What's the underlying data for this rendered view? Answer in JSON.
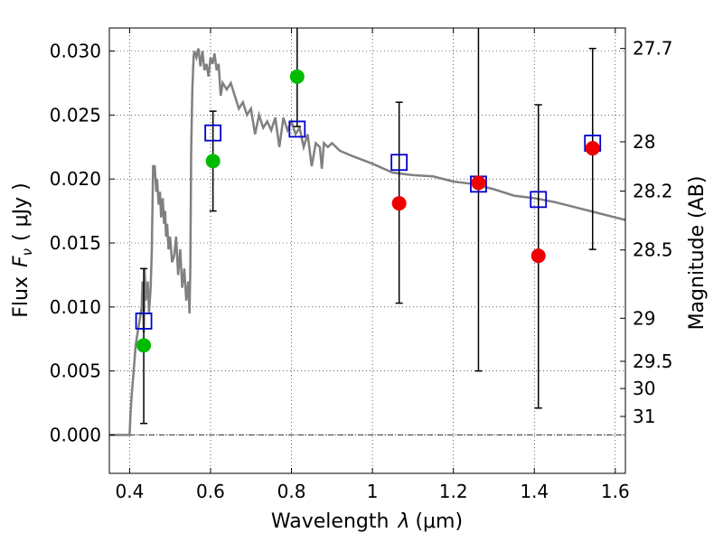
{
  "chart_data": {
    "type": "scatter",
    "xlabel": "Wavelength",
    "xlabel_symbol": "λ",
    "xlabel_unit": "(μm)",
    "ylabel": "Flux",
    "ylabel_symbol": "F",
    "ylabel_sub": "ν",
    "ylabel_unit": "( μJy )",
    "y2label": "Magnitude (AB)",
    "xlim": [
      0.35,
      1.625
    ],
    "ylim": [
      -0.003,
      0.0318
    ],
    "grid": true,
    "xticks": [
      {
        "value": 0.4,
        "label": "0.4"
      },
      {
        "value": 0.6,
        "label": "0.6"
      },
      {
        "value": 0.8,
        "label": "0.8"
      },
      {
        "value": 1.0,
        "label": "1"
      },
      {
        "value": 1.2,
        "label": "1.2"
      },
      {
        "value": 1.4,
        "label": "1.4"
      },
      {
        "value": 1.6,
        "label": "1.6"
      }
    ],
    "yticks": [
      {
        "value": 0.0,
        "label": "0.000"
      },
      {
        "value": 0.005,
        "label": "0.005"
      },
      {
        "value": 0.01,
        "label": "0.010"
      },
      {
        "value": 0.015,
        "label": "0.015"
      },
      {
        "value": 0.02,
        "label": "0.020"
      },
      {
        "value": 0.025,
        "label": "0.025"
      },
      {
        "value": 0.03,
        "label": "0.030"
      }
    ],
    "mag_ticks": [
      {
        "mag": 27.7,
        "label": "27.7"
      },
      {
        "mag": 28.0,
        "label": "28"
      },
      {
        "mag": 28.2,
        "label": "28.2"
      },
      {
        "mag": 28.5,
        "label": "28.5"
      },
      {
        "mag": 29.0,
        "label": "29"
      },
      {
        "mag": 29.5,
        "label": "29.5"
      },
      {
        "mag": 30.0,
        "label": "30"
      },
      {
        "mag": 31.0,
        "label": "31"
      }
    ],
    "model_sed": {
      "color": "#808080",
      "x": [
        0.35,
        0.4,
        0.402,
        0.405,
        0.41,
        0.415,
        0.42,
        0.425,
        0.43,
        0.432,
        0.435,
        0.437,
        0.44,
        0.445,
        0.448,
        0.452,
        0.455,
        0.458,
        0.462,
        0.466,
        0.468,
        0.472,
        0.475,
        0.478,
        0.482,
        0.485,
        0.488,
        0.49,
        0.493,
        0.496,
        0.5,
        0.505,
        0.51,
        0.515,
        0.52,
        0.525,
        0.53,
        0.535,
        0.54,
        0.545,
        0.548,
        0.55,
        0.552,
        0.555,
        0.558,
        0.56,
        0.565,
        0.57,
        0.575,
        0.58,
        0.585,
        0.59,
        0.595,
        0.6,
        0.605,
        0.61,
        0.615,
        0.62,
        0.625,
        0.63,
        0.64,
        0.65,
        0.66,
        0.67,
        0.68,
        0.69,
        0.7,
        0.71,
        0.72,
        0.73,
        0.74,
        0.75,
        0.76,
        0.77,
        0.78,
        0.79,
        0.8,
        0.81,
        0.82,
        0.83,
        0.84,
        0.85,
        0.86,
        0.87,
        0.875,
        0.88,
        0.89,
        0.9,
        0.92,
        0.95,
        1.0,
        1.05,
        1.1,
        1.15,
        1.2,
        1.25,
        1.3,
        1.35,
        1.4,
        1.45,
        1.5,
        1.55,
        1.6,
        1.625
      ],
      "y": [
        0.0,
        0.0,
        0.0015,
        0.003,
        0.005,
        0.007,
        0.008,
        0.009,
        0.01,
        0.012,
        0.008,
        0.013,
        0.0105,
        0.012,
        0.0095,
        0.0115,
        0.0145,
        0.021,
        0.021,
        0.019,
        0.02,
        0.018,
        0.019,
        0.017,
        0.0185,
        0.0165,
        0.0175,
        0.0155,
        0.0165,
        0.0145,
        0.0155,
        0.0135,
        0.014,
        0.0155,
        0.0125,
        0.0145,
        0.0115,
        0.013,
        0.0105,
        0.012,
        0.0095,
        0.013,
        0.022,
        0.027,
        0.0295,
        0.03,
        0.0295,
        0.0302,
        0.0288,
        0.03,
        0.0285,
        0.029,
        0.028,
        0.0295,
        0.029,
        0.0298,
        0.0285,
        0.029,
        0.0265,
        0.0275,
        0.027,
        0.0275,
        0.0265,
        0.0255,
        0.026,
        0.025,
        0.0255,
        0.0235,
        0.025,
        0.024,
        0.0245,
        0.0238,
        0.0248,
        0.0225,
        0.0248,
        0.0238,
        0.0245,
        0.0235,
        0.024,
        0.0225,
        0.0235,
        0.021,
        0.0228,
        0.0225,
        0.0208,
        0.0228,
        0.0225,
        0.0228,
        0.0222,
        0.0218,
        0.0212,
        0.0205,
        0.0203,
        0.0202,
        0.0198,
        0.0196,
        0.0192,
        0.0187,
        0.0185,
        0.0182,
        0.0178,
        0.0174,
        0.017,
        0.0168
      ]
    },
    "photometry": [
      {
        "x": 0.435,
        "y": 0.0089,
        "yerr_lo": 0.0009,
        "yerr_hi": 0.013,
        "obs": 0.007,
        "obs_color": "#00bb00"
      },
      {
        "x": 0.606,
        "y": 0.0236,
        "yerr_lo": 0.0175,
        "yerr_hi": 0.0253,
        "obs": 0.0214,
        "obs_color": "#00bb00"
      },
      {
        "x": 0.814,
        "y": 0.0239,
        "yerr_lo": 0.0241,
        "yerr_hi": 0.0318,
        "obs": 0.028,
        "obs_color": "#00bb00"
      },
      {
        "x": 1.066,
        "y": 0.0213,
        "yerr_lo": 0.0103,
        "yerr_hi": 0.026,
        "obs": 0.0181,
        "obs_color": "#ee0000"
      },
      {
        "x": 1.262,
        "y": 0.0196,
        "yerr_lo": 0.005,
        "yerr_hi": 0.0318,
        "obs": 0.0197,
        "obs_color": "#ee0000"
      },
      {
        "x": 1.41,
        "y": 0.0184,
        "yerr_lo": 0.0021,
        "yerr_hi": 0.0258,
        "obs": 0.014,
        "obs_color": "#ee0000"
      },
      {
        "x": 1.544,
        "y": 0.0228,
        "yerr_lo": 0.0145,
        "yerr_hi": 0.0302,
        "obs": 0.0224,
        "obs_color": "#ee0000"
      }
    ],
    "model_marker_color": "#0000cc"
  }
}
